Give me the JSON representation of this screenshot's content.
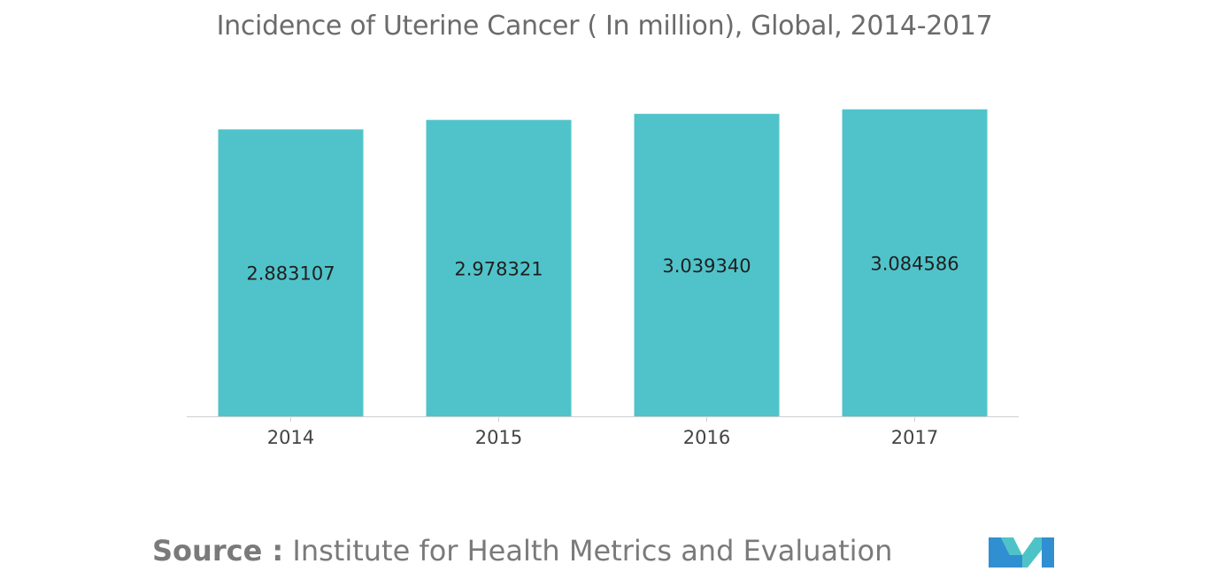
{
  "chart_data": {
    "type": "bar",
    "title": "Incidence of Uterine Cancer ( In million), Global, 2014-2017",
    "categories": [
      "2014",
      "2015",
      "2016",
      "2017"
    ],
    "values": [
      2.883107,
      2.978321,
      3.03934,
      3.084586
    ],
    "value_labels": [
      "2.883107",
      "2.978321",
      "3.039340",
      "3.084586"
    ],
    "xlabel": "",
    "ylabel": "",
    "y_axis_visible": false,
    "grid": false,
    "legend": "none",
    "colors": {
      "bar": "#50c3ca"
    }
  },
  "source": {
    "label": "Source :",
    "text": "Institute for Health Metrics and Evaluation"
  },
  "logo": {
    "icon": "mordor-intelligence-logo",
    "colors": [
      "#2f8fd0",
      "#4ec3c7"
    ]
  }
}
